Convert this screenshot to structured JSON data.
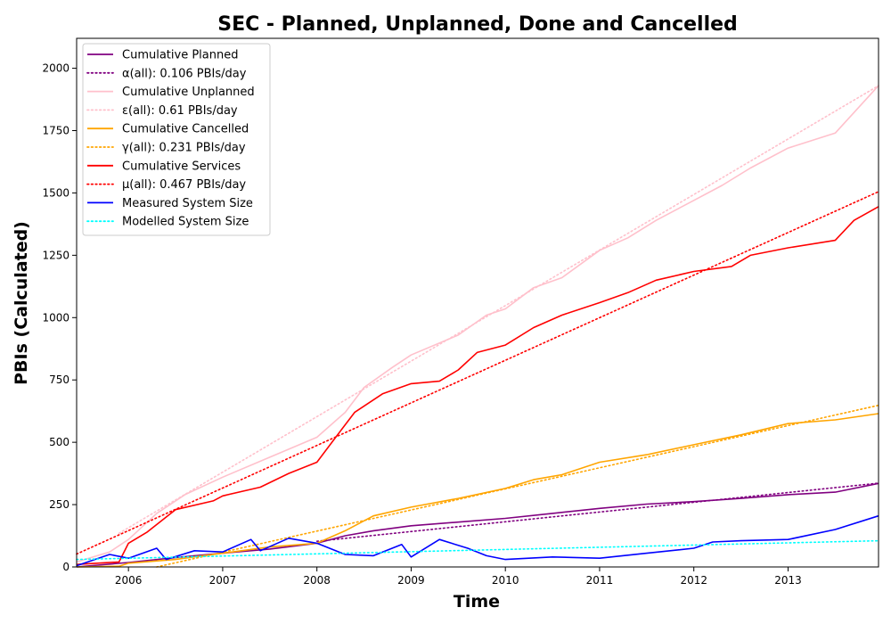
{
  "chart_data": {
    "type": "line",
    "title": "SEC - Planned, Unplanned, Done  and Cancelled",
    "xlabel": "Time",
    "ylabel": "PBIs (Calculated)",
    "xlim": [
      2005.45,
      2013.96
    ],
    "ylim": [
      0,
      2120
    ],
    "x_ticks": [
      "2006",
      "2007",
      "2008",
      "2009",
      "2010",
      "2011",
      "2012",
      "2013"
    ],
    "y_ticks": [
      "0",
      "250",
      "500",
      "750",
      "1000",
      "1250",
      "1500",
      "1750",
      "2000"
    ],
    "grid": false,
    "legend_position": "top-left",
    "series": [
      {
        "name": "Cumulative Planned",
        "color": "#800080",
        "style": "solid",
        "x": [
          2005.45,
          2006.0,
          2006.5,
          2007.0,
          2007.5,
          2008.0,
          2008.3,
          2008.6,
          2009.0,
          2009.5,
          2010.0,
          2010.5,
          2011.0,
          2011.5,
          2012.0,
          2012.5,
          2013.0,
          2013.5,
          2013.96
        ],
        "y": [
          0,
          18,
          38,
          55,
          72,
          95,
          125,
          145,
          165,
          180,
          195,
          215,
          235,
          252,
          262,
          275,
          290,
          300,
          335
        ]
      },
      {
        "name": "α(all): 0.106 PBIs/day",
        "color": "#800080",
        "style": "dotted",
        "x": [
          2008.0,
          2013.96
        ],
        "y": [
          103,
          336
        ]
      },
      {
        "name": "Cumulative Unplanned",
        "color": "#ffc0cb",
        "style": "solid",
        "x": [
          2005.45,
          2005.8,
          2006.0,
          2006.3,
          2006.6,
          2007.0,
          2007.5,
          2008.0,
          2008.3,
          2008.5,
          2008.8,
          2009.0,
          2009.5,
          2009.8,
          2010.0,
          2010.3,
          2010.6,
          2011.0,
          2011.3,
          2011.6,
          2012.0,
          2012.3,
          2012.6,
          2013.0,
          2013.5,
          2013.96
        ],
        "y": [
          20,
          60,
          110,
          215,
          290,
          360,
          440,
          520,
          620,
          720,
          800,
          850,
          930,
          1010,
          1035,
          1120,
          1160,
          1270,
          1320,
          1390,
          1470,
          1530,
          1600,
          1680,
          1740,
          1930
        ]
      },
      {
        "name": "ε(all): 0.61 PBIs/day",
        "color": "#ffc0cb",
        "style": "dotted",
        "x": [
          2005.9,
          2013.96
        ],
        "y": [
          135,
          1930
        ]
      },
      {
        "name": "Cumulative Cancelled",
        "color": "#ffa500",
        "style": "solid",
        "x": [
          2005.45,
          2005.9,
          2006.0,
          2006.5,
          2007.0,
          2007.5,
          2008.0,
          2008.3,
          2008.6,
          2009.0,
          2009.5,
          2010.0,
          2010.3,
          2010.6,
          2011.0,
          2011.5,
          2012.0,
          2012.5,
          2013.0,
          2013.5,
          2013.96
        ],
        "y": [
          0,
          3,
          15,
          30,
          55,
          80,
          95,
          145,
          205,
          240,
          275,
          315,
          350,
          370,
          420,
          450,
          490,
          530,
          575,
          590,
          615
        ]
      },
      {
        "name": "γ(all): 0.231 PBIs/day",
        "color": "#ffa500",
        "style": "dotted",
        "x": [
          2006.3,
          2013.96
        ],
        "y": [
          0,
          648
        ]
      },
      {
        "name": "Cumulative Services",
        "color": "#ff0000",
        "style": "solid",
        "x": [
          2005.45,
          2005.9,
          2006.0,
          2006.2,
          2006.5,
          2006.9,
          2007.0,
          2007.4,
          2007.7,
          2008.0,
          2008.2,
          2008.4,
          2008.7,
          2009.0,
          2009.3,
          2009.5,
          2009.7,
          2010.0,
          2010.3,
          2010.6,
          2011.0,
          2011.3,
          2011.6,
          2012.0,
          2012.4,
          2012.6,
          2013.0,
          2013.5,
          2013.7,
          2013.96
        ],
        "y": [
          10,
          20,
          95,
          140,
          230,
          265,
          285,
          320,
          375,
          420,
          520,
          620,
          695,
          735,
          745,
          790,
          860,
          890,
          960,
          1010,
          1060,
          1100,
          1150,
          1185,
          1205,
          1250,
          1280,
          1310,
          1390,
          1445
        ]
      },
      {
        "name": "μ(all): 0.467 PBIs/day",
        "color": "#ff0000",
        "style": "dotted",
        "x": [
          2005.45,
          2013.96
        ],
        "y": [
          52,
          1505
        ]
      },
      {
        "name": "Measured System Size",
        "color": "#0000ff",
        "style": "solid",
        "x": [
          2005.45,
          2005.8,
          2006.0,
          2006.3,
          2006.4,
          2006.7,
          2007.0,
          2007.3,
          2007.4,
          2007.7,
          2008.0,
          2008.3,
          2008.6,
          2008.9,
          2009.0,
          2009.3,
          2009.6,
          2009.8,
          2010.0,
          2010.5,
          2011.0,
          2011.5,
          2012.0,
          2012.2,
          2012.5,
          2013.0,
          2013.5,
          2013.96
        ],
        "y": [
          5,
          50,
          35,
          75,
          30,
          65,
          60,
          110,
          65,
          115,
          95,
          50,
          45,
          90,
          40,
          110,
          75,
          45,
          30,
          40,
          35,
          55,
          75,
          100,
          105,
          110,
          150,
          205
        ]
      },
      {
        "name": "Modelled System Size",
        "color": "#00ffff",
        "style": "dotted",
        "x": [
          2005.45,
          2013.96
        ],
        "y": [
          30,
          105
        ]
      }
    ]
  }
}
